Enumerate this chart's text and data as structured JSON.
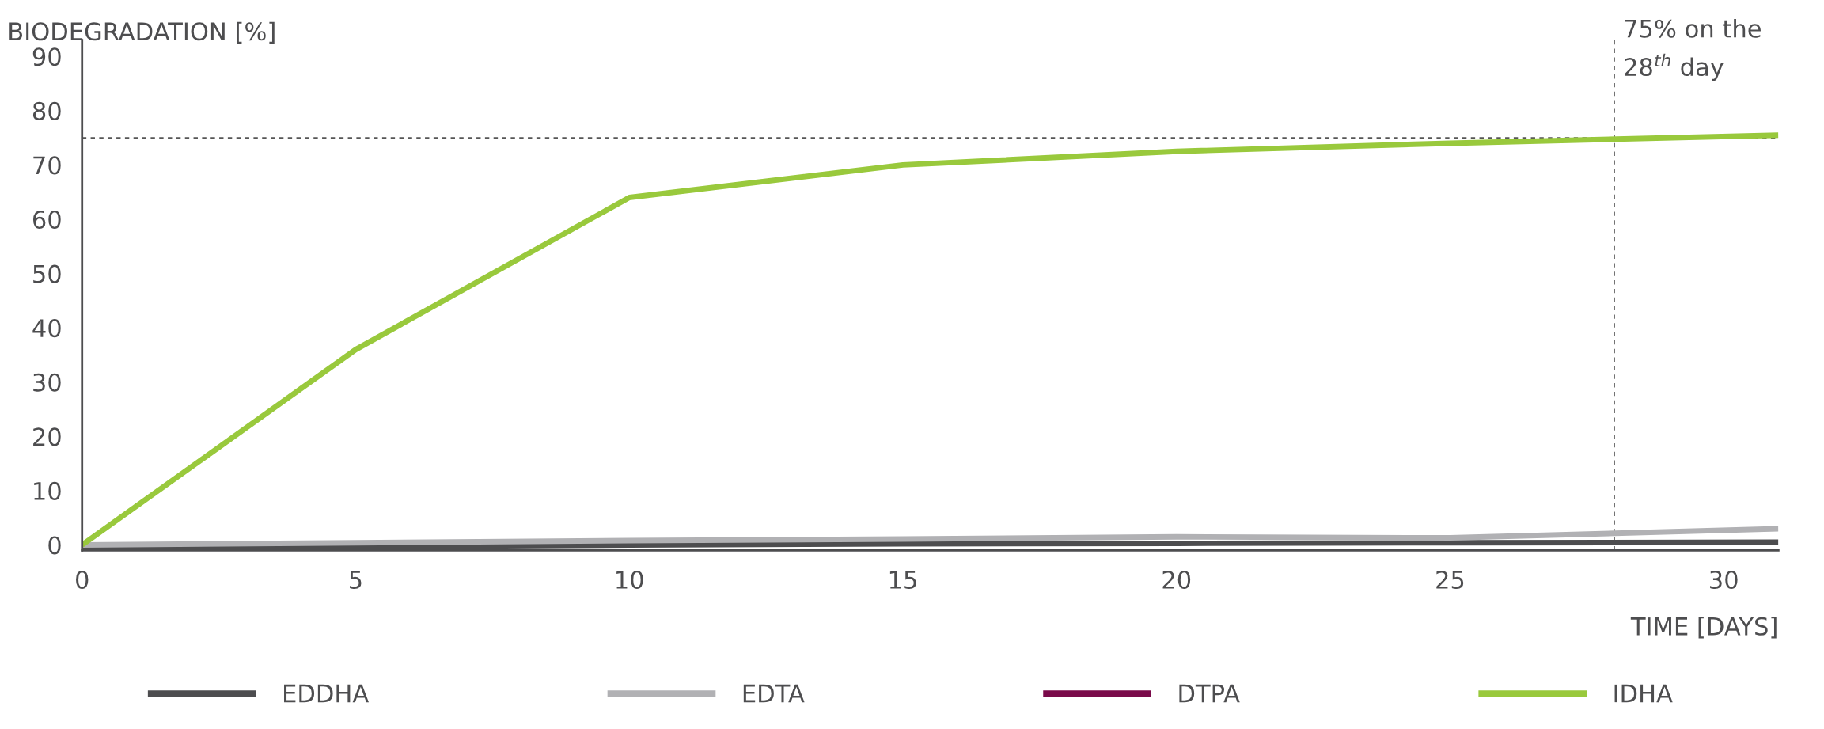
{
  "chart_data": {
    "type": "line",
    "ylabel": "BIODEGRADATION [%]",
    "xlabel": "TIME [DAYS]",
    "x": [
      0,
      5,
      10,
      15,
      20,
      25,
      31
    ],
    "series": [
      {
        "name": "EDDHA",
        "color": "#4d4d4f",
        "values": [
          -0.5,
          -0.3,
          0,
          0.2,
          0.3,
          0.4,
          0.5
        ]
      },
      {
        "name": "EDTA",
        "color": "#b1b1b4",
        "values": [
          0,
          0.4,
          0.8,
          1.1,
          1.5,
          1.3,
          3.0
        ]
      },
      {
        "name": "DTPA",
        "color": "#7a0a4a",
        "values": [
          null,
          null,
          null,
          null,
          null,
          null,
          null
        ]
      },
      {
        "name": "IDHA",
        "color": "#99c93c",
        "values": [
          0,
          36,
          64,
          70,
          72.5,
          74,
          75.5
        ]
      }
    ],
    "xlim": [
      0,
      31
    ],
    "xticks": [
      0,
      5,
      10,
      15,
      20,
      25,
      30
    ],
    "ylim": [
      -1,
      93
    ],
    "yticks": [
      0,
      10,
      20,
      30,
      40,
      50,
      60,
      70,
      80,
      90
    ],
    "ref_lines": [
      {
        "axis": "y",
        "value": 75,
        "color": "#555555",
        "line_style": "dashed"
      },
      {
        "axis": "x",
        "value": 28,
        "color": "#555555",
        "line_style": "dashed"
      }
    ],
    "annotations": [
      {
        "text": "75% on the\n28$^{th}$ day",
        "x": 28,
        "y": 75
      }
    ],
    "legend": "bottom",
    "grid": false,
    "marker": "none",
    "line_style": "solid"
  }
}
